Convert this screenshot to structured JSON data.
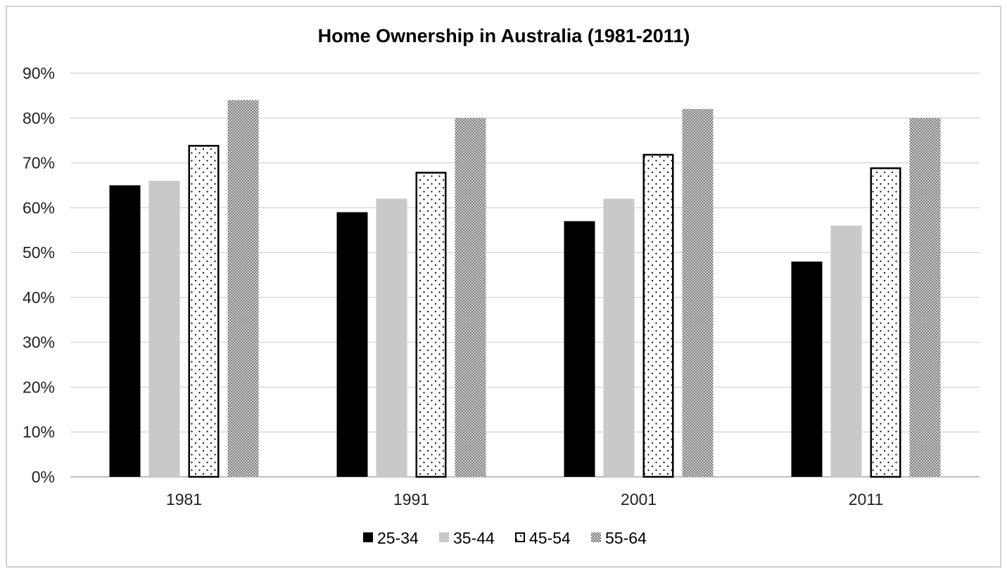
{
  "chart_data": {
    "type": "bar",
    "title": "Home Ownership in Australia (1981-2011)",
    "xlabel": "",
    "ylabel": "",
    "categories": [
      "1981",
      "1991",
      "2001",
      "2011"
    ],
    "series": [
      {
        "name": "25-34",
        "values": [
          65,
          59,
          57,
          48
        ],
        "pattern": "solid-black"
      },
      {
        "name": "35-44",
        "values": [
          66,
          62,
          62,
          56
        ],
        "pattern": "solid-gray"
      },
      {
        "name": "45-54",
        "values": [
          74,
          68,
          72,
          69
        ],
        "pattern": "dotted-outline"
      },
      {
        "name": "55-64",
        "values": [
          84,
          80,
          82,
          80
        ],
        "pattern": "checker-gray"
      }
    ],
    "ylim": [
      0,
      90
    ],
    "yticks": [
      0,
      10,
      20,
      30,
      40,
      50,
      60,
      70,
      80,
      90
    ],
    "ytick_labels": [
      "0%",
      "10%",
      "20%",
      "30%",
      "40%",
      "50%",
      "60%",
      "70%",
      "80%",
      "90%"
    ],
    "grid": true,
    "legend_position": "bottom-center",
    "colors": {
      "black": "#000000",
      "gray": "#c9c9c9",
      "checker": "#9a9a9a",
      "grid": "#d9d9d9",
      "border": "#d0d0d0"
    }
  }
}
